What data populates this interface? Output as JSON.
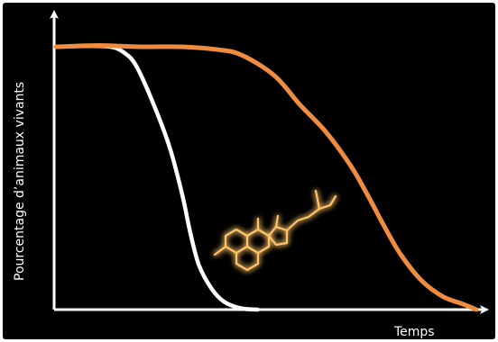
{
  "chart_data": {
    "type": "line",
    "title": "",
    "xlabel": "Temps",
    "ylabel": "Pourcentage d’animaux vivants",
    "xlim": [
      0,
      100
    ],
    "ylim": [
      0,
      100
    ],
    "grid": false,
    "legend": "none",
    "series": [
      {
        "color": "#ffffff",
        "x": [
          0,
          8,
          13,
          16,
          19,
          23,
          27,
          30,
          32,
          34,
          37,
          40,
          44,
          48
        ],
        "y": [
          100,
          100.3,
          100,
          98,
          93,
          79,
          62,
          44,
          29,
          17,
          8,
          3,
          0.5,
          0
        ]
      },
      {
        "color": "#ef8c3f",
        "x": [
          0,
          10,
          20,
          30,
          38,
          44,
          52,
          58,
          64,
          70,
          74,
          78,
          82,
          87,
          92,
          97,
          100
        ],
        "y": [
          100,
          100.5,
          100,
          100,
          99,
          97,
          89,
          78,
          68,
          55,
          44,
          32,
          21,
          11,
          5,
          2,
          0
        ]
      }
    ],
    "decoration": {
      "molecule_icon": "steroid-molecule-icon",
      "glow_color": "#ffb34a"
    },
    "axis_color": "#ffffff"
  }
}
